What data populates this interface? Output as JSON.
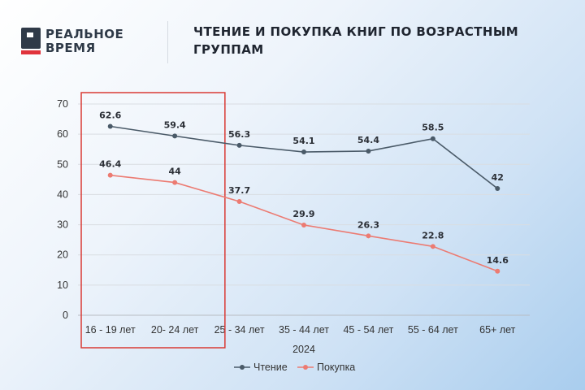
{
  "brand": {
    "line1": "РЕАЛЬНОЕ",
    "line2": "ВРЕМЯ",
    "accent_color": "#e0333c",
    "mark_color": "#2f3a48"
  },
  "header": {
    "title": "ЧТЕНИЕ И ПОКУПКА КНИГ ПО ВОЗРАСТНЫМ ГРУППАМ"
  },
  "chart_data": {
    "type": "line",
    "categories": [
      "16 - 19 лет",
      "20- 24 лет",
      "25 - 34 лет",
      "35 - 44 лет",
      "45 - 54 лет",
      "55 - 64 лет",
      "65+ лет"
    ],
    "xlabel": "2024",
    "ylabel": "",
    "ylim": [
      0,
      70
    ],
    "yticks": [
      0,
      10,
      20,
      30,
      40,
      50,
      60,
      70
    ],
    "grid": true,
    "legend_position": "bottom",
    "series": [
      {
        "name": "Чтение",
        "values": [
          62.6,
          59.4,
          56.3,
          54.1,
          54.4,
          58.5,
          42
        ],
        "labels": [
          "62.6",
          "59.4",
          "56.3",
          "54.1",
          "54.4",
          "58.5",
          "42"
        ],
        "color": "#4a5a68"
      },
      {
        "name": "Покупка",
        "values": [
          46.4,
          44,
          37.7,
          29.9,
          26.3,
          22.8,
          14.6
        ],
        "labels": [
          "46.4",
          "44",
          "37.7",
          "29.9",
          "26.3",
          "22.8",
          "14.6"
        ],
        "color": "#ec7b72"
      }
    ],
    "highlight": {
      "categories": [
        "16 - 19 лет",
        "20- 24 лет"
      ],
      "color": "#d93a34"
    }
  }
}
